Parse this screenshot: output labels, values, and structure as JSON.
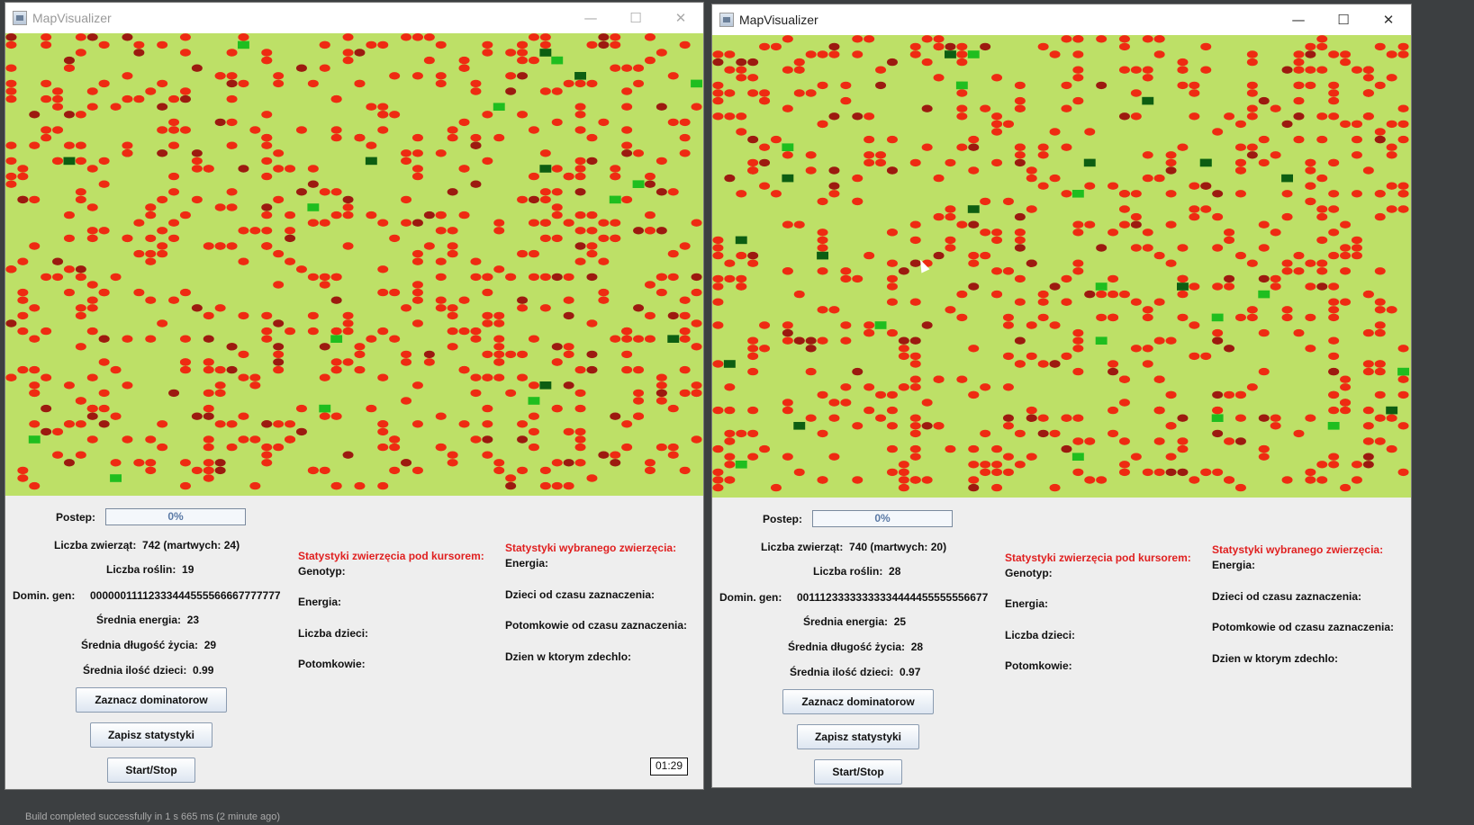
{
  "ide": {
    "status_text": "Build completed successfully in 1 s 665 ms (2 minute ago)"
  },
  "timer": "01:29",
  "colors": {
    "field": "#bde067",
    "animal": "#ee2b12",
    "animal_dark": "#9c1a10",
    "plant_light": "#1fbe1f",
    "plant_dark": "#0d5e12",
    "panel_bg": "#eeeeee",
    "accent_red": "#e02020"
  },
  "windows": [
    {
      "title": "MapVisualizer",
      "labels": {
        "progress": "Postep:",
        "animals": "Liczba zwierząt:",
        "plants": "Liczba roślin:",
        "dominant_gene": "Domin. gen:",
        "avg_energy": "Średnia energia:",
        "avg_lifespan": "Średnia długość życia:",
        "avg_children": "Średnia ilość dzieci:"
      },
      "values": {
        "progress": "0%",
        "progress_fraction": 0,
        "animals": "742 (martwych: 24)",
        "plants": "19",
        "dominant_gene": "00000011112333444555566667777777",
        "avg_energy": "23",
        "avg_lifespan": "29",
        "avg_children": "0.99"
      },
      "cursor_stats": {
        "header": "Statystyki zwierzęcia pod kursorem:",
        "genotype": "Genotyp:",
        "energy": "Energia:",
        "children": "Liczba dzieci:",
        "descendants": "Potomkowie:"
      },
      "selected_stats": {
        "header": "Statystyki wybranego zwierzęcia:",
        "energy": "Energia:",
        "children_since": "Dzieci od czasu zaznaczenia:",
        "descendants_since": "Potomkowie od czasu zaznaczenia:",
        "death_day": "Dzien w ktorym zdechlo:"
      },
      "buttons": {
        "mark_dominators": "Zaznacz dominatorow",
        "save_stats": "Zapisz statystyki",
        "start_stop": "Start/Stop"
      }
    },
    {
      "title": "MapVisualizer",
      "labels": {
        "progress": "Postep:",
        "animals": "Liczba zwierząt:",
        "plants": "Liczba roślin:",
        "dominant_gene": "Domin. gen:",
        "avg_energy": "Średnia energia:",
        "avg_lifespan": "Średnia długość życia:",
        "avg_children": "Średnia ilość dzieci:"
      },
      "values": {
        "progress": "0%",
        "progress_fraction": 0,
        "animals": "740 (martwych: 20)",
        "plants": "28",
        "dominant_gene": "00111233333333334444455555556677",
        "avg_energy": "25",
        "avg_lifespan": "28",
        "avg_children": "0.97"
      },
      "cursor_stats": {
        "header": "Statystyki zwierzęcia pod kursorem:",
        "genotype": "Genotyp:",
        "energy": "Energia:",
        "children": "Liczba dzieci:",
        "descendants": "Potomkowie:"
      },
      "selected_stats": {
        "header": "Statystyki wybranego zwierzęcia:",
        "energy": "Energia:",
        "children_since": "Dzieci od czasu zaznaczenia:",
        "descendants_since": "Potomkowie od czasu zaznaczenia:",
        "death_day": "Dzien w ktorym zdechlo:"
      },
      "buttons": {
        "mark_dominators": "Zaznacz dominatorow",
        "save_stats": "Zapisz statystyki",
        "start_stop": "Start/Stop"
      }
    }
  ]
}
